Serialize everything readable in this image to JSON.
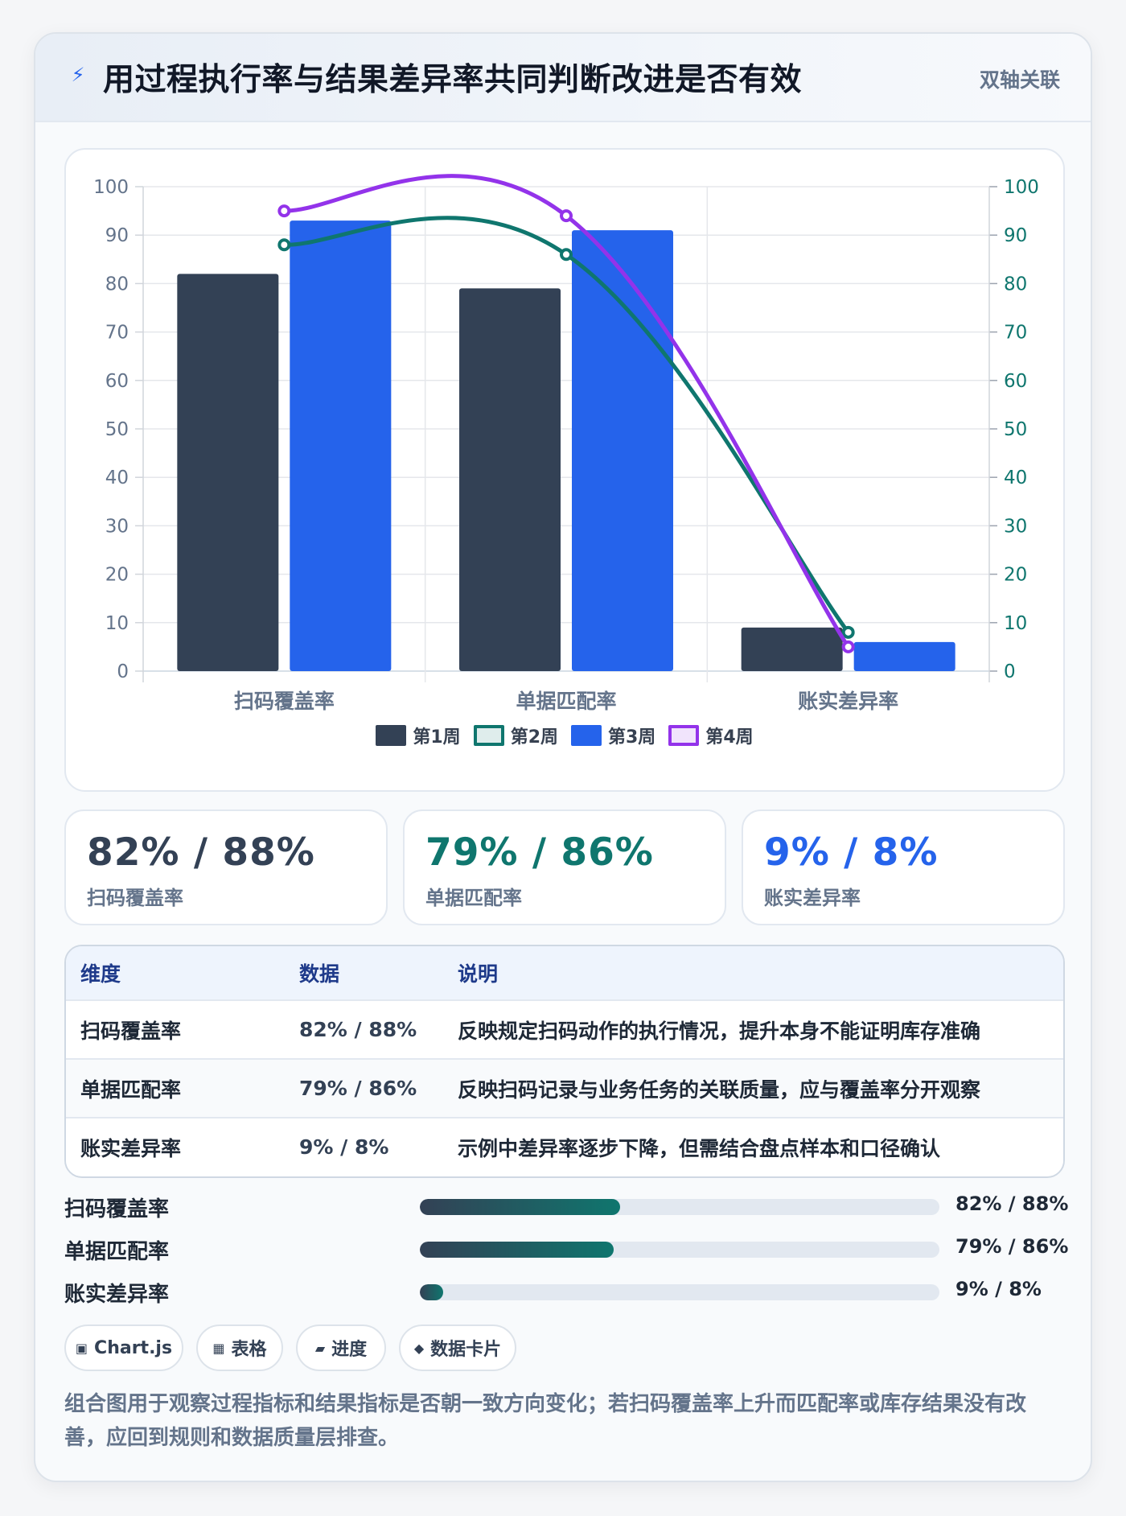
{
  "header": {
    "icon": "⚡",
    "icon_name": "lightning-icon",
    "title": "用过程执行率与结果差异率共同判断改进是否有效",
    "tag": "双轴关联"
  },
  "chart_data": {
    "type": "bar",
    "categories": [
      "扫码覆盖率",
      "单据匹配率",
      "账实差异率"
    ],
    "series": [
      {
        "name": "第1周",
        "kind": "bar",
        "axis": "left",
        "color": "#334155",
        "values": [
          82,
          79,
          9
        ]
      },
      {
        "name": "第2周",
        "kind": "line",
        "axis": "right",
        "color": "#0f766e",
        "values": [
          88,
          86,
          8
        ]
      },
      {
        "name": "第3周",
        "kind": "bar",
        "axis": "left",
        "color": "#2563eb",
        "values": [
          93,
          91,
          6
        ]
      },
      {
        "name": "第4周",
        "kind": "line",
        "axis": "right",
        "color": "#9333ea",
        "values": [
          95,
          94,
          5
        ]
      }
    ],
    "ylim": [
      0,
      100
    ],
    "y2lim": [
      0,
      100
    ],
    "yticks": [
      "0",
      "10",
      "20",
      "30",
      "40",
      "50",
      "60",
      "70",
      "80",
      "90",
      "100"
    ],
    "legend_position": "bottom",
    "grid": true
  },
  "kpis": [
    {
      "value": "82% / 88%",
      "label": "扫码覆盖率",
      "color": "#334155"
    },
    {
      "value": "79% / 86%",
      "label": "单据匹配率",
      "color": "#0f766e"
    },
    {
      "value": "9% / 8%",
      "label": "账实差异率",
      "color": "#2563eb"
    }
  ],
  "table": {
    "headers": [
      "维度",
      "数据",
      "说明"
    ],
    "rows": [
      [
        "扫码覆盖率",
        "82% / 88%",
        "反映规定扫码动作的执行情况，提升本身不能证明库存准确"
      ],
      [
        "单据匹配率",
        "79% / 86%",
        "反映扫码记录与业务任务的关联质量，应与覆盖率分开观察"
      ],
      [
        "账实差异率",
        "9% / 8%",
        "示例中差异率逐步下降，但需结合盘点样本和口径确认"
      ]
    ]
  },
  "progress": [
    {
      "label": "扫码覆盖率",
      "value": "82% / 88%",
      "percent": 38.5
    },
    {
      "label": "单据匹配率",
      "value": "79% / 86%",
      "percent": 37.3
    },
    {
      "label": "账实差异率",
      "value": "9% / 8%",
      "percent": 4.5
    }
  ],
  "chips": [
    {
      "icon": "▣",
      "icon_name": "chart-icon",
      "label": "Chart.js"
    },
    {
      "icon": "▦",
      "icon_name": "table-icon",
      "label": "表格"
    },
    {
      "icon": "▰",
      "icon_name": "progress-icon",
      "label": "进度"
    },
    {
      "icon": "◆",
      "icon_name": "card-icon",
      "label": "数据卡片"
    }
  ],
  "note": "组合图用于观察过程指标和结果指标是否朝一致方向变化；若扫码覆盖率上升而匹配率或库存结果没有改善，应回到规则和数据质量层排查。"
}
